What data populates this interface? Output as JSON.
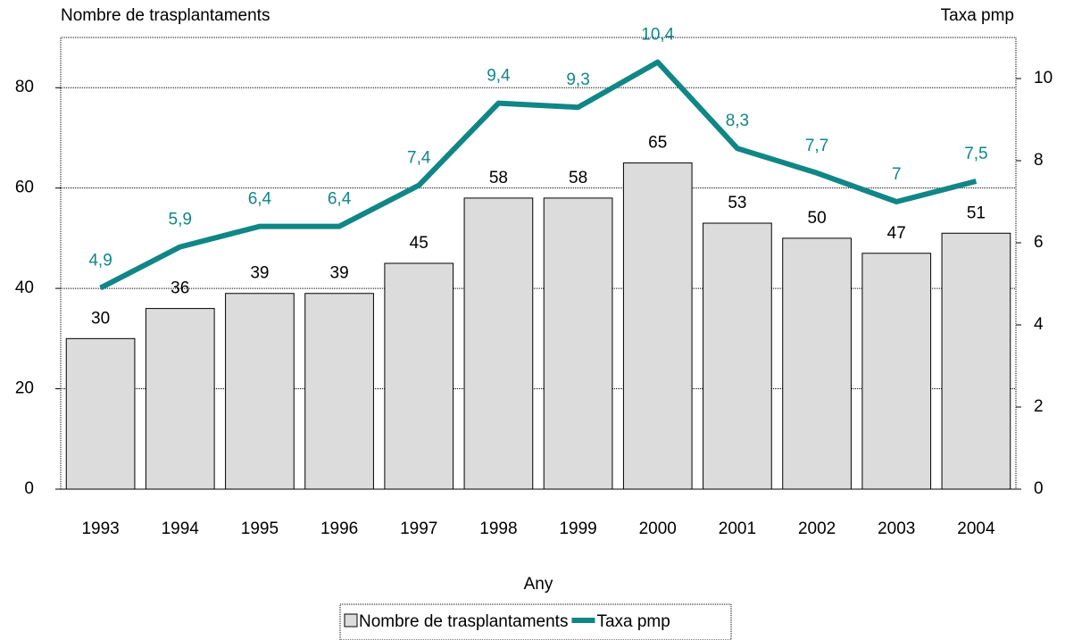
{
  "chart_data": {
    "type": "bar",
    "y_label": "Nombre de trasplantaments",
    "y2_label": "Taxa pmp",
    "x_label": "Any",
    "categories": [
      "1993",
      "1994",
      "1995",
      "1996",
      "1997",
      "1998",
      "1999",
      "2000",
      "2001",
      "2002",
      "2003",
      "2004"
    ],
    "series": [
      {
        "name": "Nombre de trasplantaments",
        "type": "bar",
        "color": "#dcdcdc",
        "values": [
          30,
          36,
          39,
          39,
          45,
          58,
          58,
          65,
          53,
          50,
          47,
          51
        ]
      },
      {
        "name": "Taxa pmp",
        "type": "line",
        "axis": "y2",
        "color": "#118686",
        "values": [
          4.9,
          5.9,
          6.4,
          6.4,
          7.4,
          9.4,
          9.3,
          10.4,
          8.3,
          7.7,
          7,
          7.5
        ],
        "value_labels": [
          "4,9",
          "5,9",
          "6,4",
          "6,4",
          "7,4",
          "9,4",
          "9,3",
          "10,4",
          "8,3",
          "7,7",
          "7",
          "7,5"
        ]
      }
    ],
    "ylim": [
      0,
      90
    ],
    "yticks": [
      0,
      20,
      40,
      60,
      80
    ],
    "y2lim": [
      0,
      11
    ],
    "y2ticks": [
      0,
      2,
      4,
      6,
      8,
      10
    ],
    "grid": true,
    "legend": "bottom"
  }
}
